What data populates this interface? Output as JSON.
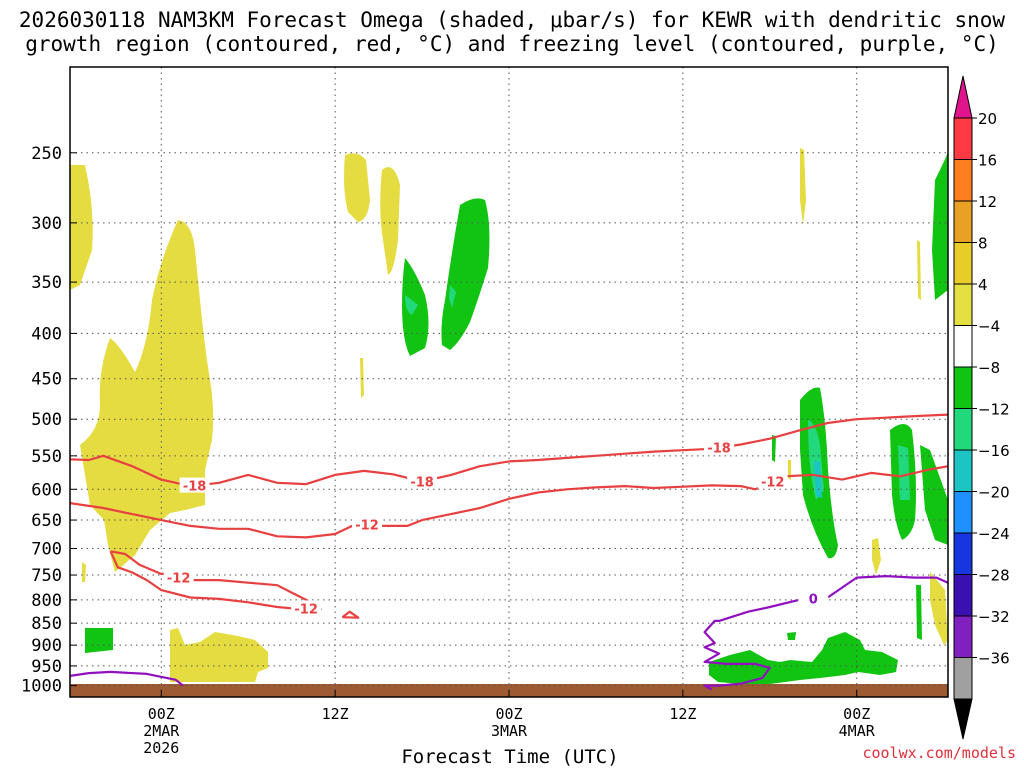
{
  "title_line1": "2026030118 NAM3KM Forecast Omega (shaded, μbar/s) for KEWR with dendritic snow",
  "title_line2": "growth region (contoured, red, °C) and freezing level (contoured, purple, °C)",
  "xlabel": "Forecast Time (UTC)",
  "credit": "coolwx.com/models",
  "chart_data": {
    "type": "heatmap",
    "title": "2026030118 NAM3KM Forecast Omega (shaded, μbar/s) for KEWR with dendritic snow growth region (contoured, red, °C) and freezing level (contoured, purple, °C)",
    "xlabel": "Forecast Time (UTC)",
    "ylabel": "",
    "y_scale": "log-pressure (reversed)",
    "yticks": [
      250,
      300,
      350,
      400,
      450,
      500,
      550,
      600,
      650,
      700,
      750,
      800,
      850,
      900,
      950,
      1000
    ],
    "xticks": [
      {
        "hour": 0,
        "label1": "00Z",
        "label2": "2MAR",
        "label3": "2026"
      },
      {
        "hour": 12,
        "label1": "12Z",
        "label2": "",
        "label3": ""
      },
      {
        "hour": 24,
        "label1": "00Z",
        "label2": "3MAR",
        "label3": ""
      },
      {
        "hour": 36,
        "label1": "12Z",
        "label2": "",
        "label3": ""
      },
      {
        "hour": 48,
        "label1": "00Z",
        "label2": "4MAR",
        "label3": ""
      }
    ],
    "xlim_hours": [
      -6.3,
      54.3
    ],
    "ylim_hpa": [
      200,
      1030
    ],
    "grid": true,
    "colorbar": {
      "labels": [
        "20",
        "16",
        "12",
        "8",
        "4",
        "−4",
        "−8",
        "−12",
        "−16",
        "−20",
        "−24",
        "−28",
        "−32",
        "−36"
      ],
      "colors": [
        "#ff3a44",
        "#ff7f20",
        "#e8a025",
        "#e8cd28",
        "#e4e044",
        "#ffffff",
        "#12c412",
        "#22d87c",
        "#1cc4c4",
        "#1e90ff",
        "#1836e0",
        "#3a10b0",
        "#8020c0",
        "#a0a0a0"
      ],
      "top_arrow_color": "#e0148c",
      "bottom_arrow_color": "#000000"
    },
    "contours": {
      "dgz_red": [
        {
          "label": "-18",
          "points": [
            [
              -6.3,
              555
            ],
            [
              -5,
              556
            ],
            [
              -4,
              550
            ],
            [
              -2,
              565
            ],
            [
              0,
              585
            ],
            [
              2,
              595
            ],
            [
              4,
              590
            ],
            [
              6,
              578
            ],
            [
              8,
              590
            ],
            [
              10,
              592
            ],
            [
              12,
              578
            ],
            [
              14,
              572
            ],
            [
              16,
              577
            ],
            [
              18,
              588
            ],
            [
              20,
              578
            ],
            [
              22,
              565
            ],
            [
              24,
              558
            ],
            [
              26,
              556
            ],
            [
              28,
              553
            ],
            [
              30,
              550
            ],
            [
              32,
              547
            ],
            [
              34,
              544
            ],
            [
              36,
              542
            ],
            [
              38,
              540
            ],
            [
              40,
              534
            ],
            [
              42,
              526
            ],
            [
              44,
              515
            ],
            [
              46,
              505
            ],
            [
              48,
              500
            ],
            [
              50,
              498
            ],
            [
              52,
              496
            ],
            [
              54.3,
              494
            ]
          ]
        },
        {
          "label": "-12",
          "points": [
            [
              -6.3,
              622
            ],
            [
              -4,
              630
            ],
            [
              -2,
              640
            ],
            [
              0,
              650
            ],
            [
              2,
              660
            ],
            [
              4,
              665
            ],
            [
              6,
              665
            ],
            [
              8,
              678
            ],
            [
              10,
              680
            ],
            [
              12,
              674
            ],
            [
              13.5,
              656
            ],
            [
              15,
              660
            ],
            [
              17,
              660
            ],
            [
              18,
              650
            ],
            [
              20,
              640
            ],
            [
              22,
              630
            ],
            [
              24,
              615
            ],
            [
              26,
              605
            ],
            [
              28,
              600
            ],
            [
              30,
              597
            ],
            [
              32,
              595
            ],
            [
              34,
              598
            ],
            [
              36,
              596
            ],
            [
              38,
              594
            ],
            [
              40,
              595
            ],
            [
              41,
              600
            ],
            [
              43,
              580
            ],
            [
              45,
              578
            ],
            [
              47,
              585
            ],
            [
              49,
              575
            ],
            [
              51,
              580
            ],
            [
              53,
              570
            ],
            [
              54.3,
              565
            ]
          ]
        },
        {
          "label": "-12",
          "points": [
            [
              -3.5,
              705
            ],
            [
              -2.5,
              710
            ],
            [
              -1.5,
              730
            ],
            [
              0,
              748
            ],
            [
              1,
              745
            ],
            [
              2,
              760
            ],
            [
              4,
              760
            ],
            [
              6,
              765
            ],
            [
              8,
              770
            ],
            [
              9,
              785
            ],
            [
              10,
              800
            ],
            [
              11,
              820
            ],
            [
              10.5,
              822
            ],
            [
              8,
              815
            ],
            [
              6,
              805
            ],
            [
              4,
              798
            ],
            [
              2,
              795
            ],
            [
              0,
              780
            ],
            [
              -1,
              760
            ],
            [
              -2,
              745
            ],
            [
              -3,
              735
            ],
            [
              -3.5,
              705
            ]
          ]
        },
        {
          "label": "",
          "points": [
            [
              12.5,
              837
            ],
            [
              13,
              825
            ],
            [
              13.6,
              838
            ],
            [
              12.5,
              837
            ]
          ]
        }
      ],
      "freezing_purple": [
        {
          "label": "",
          "points": [
            [
              -6.3,
              975
            ],
            [
              -5,
              968
            ],
            [
              -3.5,
              965
            ],
            [
              -1,
              970
            ],
            [
              1,
              985
            ],
            [
              1.5,
              1000
            ]
          ]
        },
        {
          "label": "0",
          "points": [
            [
              38,
              1010
            ],
            [
              37.5,
              1000
            ],
            [
              38.5,
              1000
            ],
            [
              40,
              995
            ],
            [
              41.5,
              980
            ],
            [
              42,
              955
            ],
            [
              41,
              945
            ],
            [
              39,
              945
            ],
            [
              37.5,
              940
            ],
            [
              38.5,
              920
            ],
            [
              37.5,
              905
            ],
            [
              38.2,
              895
            ],
            [
              37.5,
              870
            ],
            [
              38.2,
              845
            ],
            [
              38.5,
              845
            ],
            [
              40.5,
              825
            ],
            [
              42,
              815
            ],
            [
              44,
              800
            ],
            [
              46,
              795
            ],
            [
              48,
              755
            ],
            [
              50,
              752
            ],
            [
              52,
              755
            ],
            [
              53.5,
              755
            ],
            [
              54.3,
              765
            ]
          ]
        }
      ]
    }
  }
}
